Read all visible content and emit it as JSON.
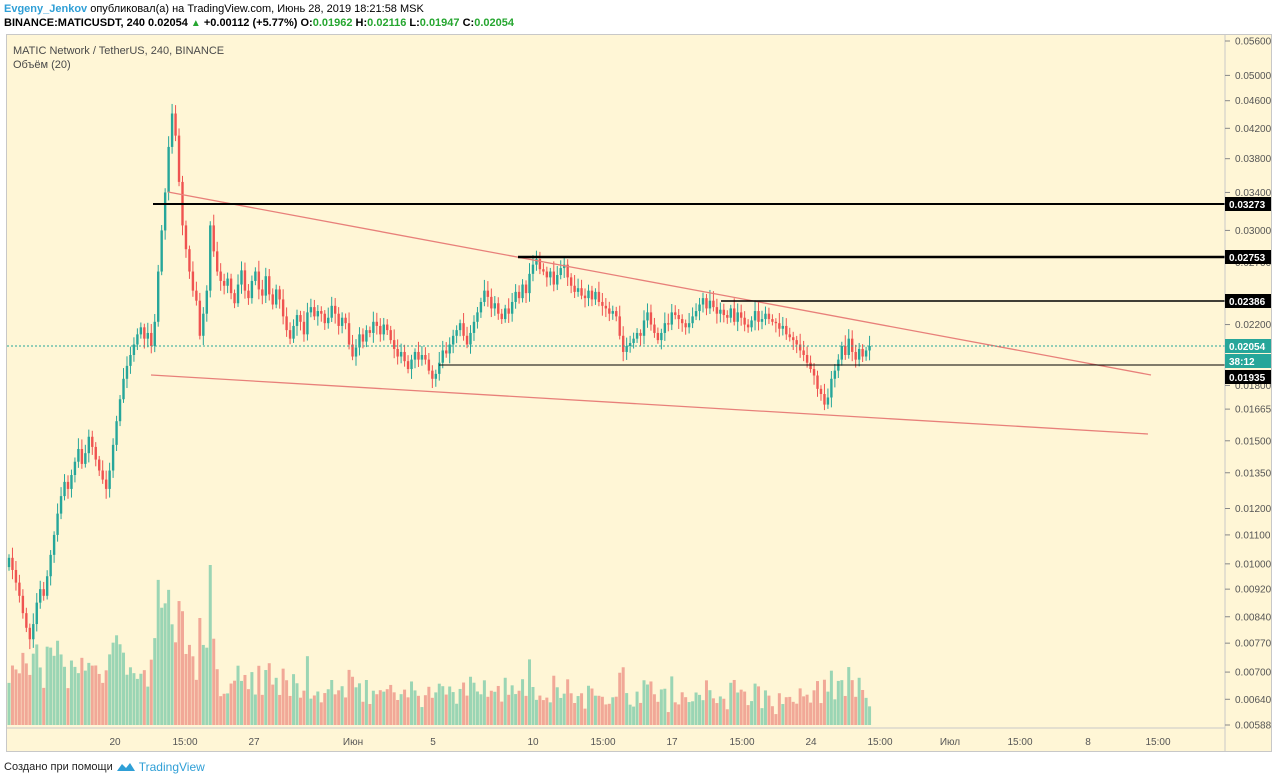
{
  "header": {
    "author": "Evgeny_Jenkov",
    "published_text": "опубликовал(а) на TradingView.com, Июнь 28, 2019 18:21:58 MSK",
    "ticker": "BINANCE:MATICUSDT, 240",
    "last": "0.02054",
    "change_arrow": "▲",
    "change": "+0.00112 (+5.77%)",
    "o_label": "O:",
    "o_value": "0.01962",
    "h_label": "H:",
    "h_value": "0.02116",
    "l_label": "L:",
    "l_value": "0.01947",
    "c_label": "C:",
    "c_value": "0.02054"
  },
  "symbol": {
    "title": "MATIC Network / TetherUS, 240, BINANCE",
    "volume_label": "Объём (20)"
  },
  "footer": {
    "created_with": "Создано при помощи",
    "brand": "TradingView"
  },
  "colors": {
    "background": "#fff6d6",
    "up": "#26a69a",
    "down": "#ef5350",
    "vol_up": "#8fd1b0",
    "vol_down": "#f0a090",
    "trendline": "#e8807a",
    "level": "#000000",
    "price_tag": "#26a69a",
    "brand": "#2f9fd6"
  },
  "price_scale": {
    "ticks": [
      "0.05600",
      "0.05000",
      "0.04600",
      "0.04200",
      "0.03800",
      "0.03400",
      "0.03000",
      "0.02700",
      "0.02200",
      "0.01800",
      "0.01665",
      "0.01500",
      "0.01350",
      "0.01200",
      "0.01100",
      "0.01000",
      "0.00920",
      "0.00840",
      "0.00770",
      "0.00700",
      "0.00640",
      "0.00588"
    ]
  },
  "time_scale": {
    "labels": [
      "20",
      "15:00",
      "27",
      "Июн",
      "5",
      "10",
      "15:00",
      "17",
      "15:00",
      "24",
      "15:00",
      "Июл",
      "15:00",
      "8",
      "15:00"
    ]
  },
  "price_tags": [
    {
      "text": "0.03273",
      "kind": "level"
    },
    {
      "text": "0.02753",
      "kind": "level"
    },
    {
      "text": "0.02386",
      "kind": "level"
    },
    {
      "text": "0.02054",
      "kind": "last"
    },
    {
      "text": "38:12",
      "kind": "countdown"
    },
    {
      "text": "0.01935",
      "kind": "level"
    }
  ],
  "chart_data": {
    "type": "candlestick",
    "title": "MATIC Network / TetherUS, 240, BINANCE",
    "symbol": "BINANCE:MATICUSDT",
    "interval": "240",
    "ohlc_last": {
      "open": 0.01962,
      "high": 0.02116,
      "low": 0.01947,
      "close": 0.02054
    },
    "horizontal_levels": [
      0.03273,
      0.02753,
      0.02386,
      0.01935
    ],
    "closes": [
      0.0102,
      0.0098,
      0.0094,
      0.009,
      0.0085,
      0.0081,
      0.0078,
      0.0082,
      0.0088,
      0.0092,
      0.009,
      0.0096,
      0.0103,
      0.011,
      0.0118,
      0.0125,
      0.0131,
      0.0128,
      0.0134,
      0.014,
      0.0146,
      0.0139,
      0.0144,
      0.0152,
      0.0147,
      0.0141,
      0.0136,
      0.0132,
      0.0128,
      0.0136,
      0.0148,
      0.016,
      0.0172,
      0.0184,
      0.0192,
      0.0199,
      0.0206,
      0.0213,
      0.0218,
      0.021,
      0.0214,
      0.0205,
      0.0222,
      0.0262,
      0.03,
      0.034,
      0.0395,
      0.0441,
      0.041,
      0.0352,
      0.0305,
      0.0282,
      0.0262,
      0.0246,
      0.0238,
      0.0212,
      0.0228,
      0.0246,
      0.0305,
      0.028,
      0.0262,
      0.0254,
      0.025,
      0.0256,
      0.0244,
      0.0236,
      0.0251,
      0.0263,
      0.0246,
      0.024,
      0.0254,
      0.0262,
      0.0247,
      0.0242,
      0.0258,
      0.0243,
      0.0235,
      0.0247,
      0.0239,
      0.0226,
      0.0216,
      0.021,
      0.0219,
      0.0227,
      0.0222,
      0.0213,
      0.0229,
      0.0233,
      0.0226,
      0.023,
      0.0228,
      0.0221,
      0.0225,
      0.0234,
      0.0228,
      0.0219,
      0.0225,
      0.0221,
      0.0206,
      0.0198,
      0.0204,
      0.0213,
      0.0208,
      0.0216,
      0.0214,
      0.0222,
      0.0219,
      0.0213,
      0.022,
      0.0216,
      0.0209,
      0.0203,
      0.0198,
      0.0201,
      0.0195,
      0.019,
      0.0196,
      0.0201,
      0.0196,
      0.0199,
      0.0196,
      0.0189,
      0.0184,
      0.0187,
      0.0194,
      0.0202,
      0.02,
      0.0206,
      0.0212,
      0.0216,
      0.0221,
      0.0212,
      0.0206,
      0.0214,
      0.0222,
      0.0229,
      0.0237,
      0.0246,
      0.0241,
      0.0232,
      0.0236,
      0.0228,
      0.0224,
      0.0232,
      0.0228,
      0.0237,
      0.0245,
      0.024,
      0.0251,
      0.0244,
      0.026,
      0.0268,
      0.0273,
      0.0264,
      0.0262,
      0.0257,
      0.0262,
      0.0251,
      0.0259,
      0.0265,
      0.0268,
      0.0257,
      0.025,
      0.0245,
      0.0248,
      0.0242,
      0.024,
      0.0246,
      0.0239,
      0.0245,
      0.0237,
      0.0234,
      0.0232,
      0.0228,
      0.023,
      0.0226,
      0.0212,
      0.0201,
      0.0205,
      0.0207,
      0.021,
      0.0214,
      0.0212,
      0.0223,
      0.0229,
      0.022,
      0.0214,
      0.0209,
      0.0214,
      0.0221,
      0.022,
      0.0229,
      0.0227,
      0.0224,
      0.0221,
      0.0218,
      0.0221,
      0.0226,
      0.023,
      0.0235,
      0.024,
      0.0232,
      0.0238,
      0.0233,
      0.0228,
      0.0231,
      0.0227,
      0.0225,
      0.0232,
      0.0222,
      0.0229,
      0.0225,
      0.022,
      0.0218,
      0.0223,
      0.023,
      0.0222,
      0.0224,
      0.0228,
      0.0224,
      0.0222,
      0.0221,
      0.0217,
      0.0219,
      0.0213,
      0.0211,
      0.0209,
      0.0206,
      0.0202,
      0.0199,
      0.0194,
      0.019,
      0.0186,
      0.0178,
      0.0175,
      0.0169,
      0.0173,
      0.0184,
      0.0189,
      0.0196,
      0.0205,
      0.0199,
      0.021,
      0.0201,
      0.0196,
      0.0203,
      0.0198,
      0.0202,
      0.0205
    ],
    "date_ticks": [
      "20",
      "15:00",
      "27",
      "Июн",
      "5",
      "10",
      "15:00",
      "17",
      "15:00",
      "24",
      "15:00",
      "Июл",
      "15:00",
      "8",
      "15:00"
    ],
    "ylim": [
      0.00588,
      0.056
    ],
    "scale": "log",
    "grid": false,
    "volume_series": "Объём (20)"
  }
}
